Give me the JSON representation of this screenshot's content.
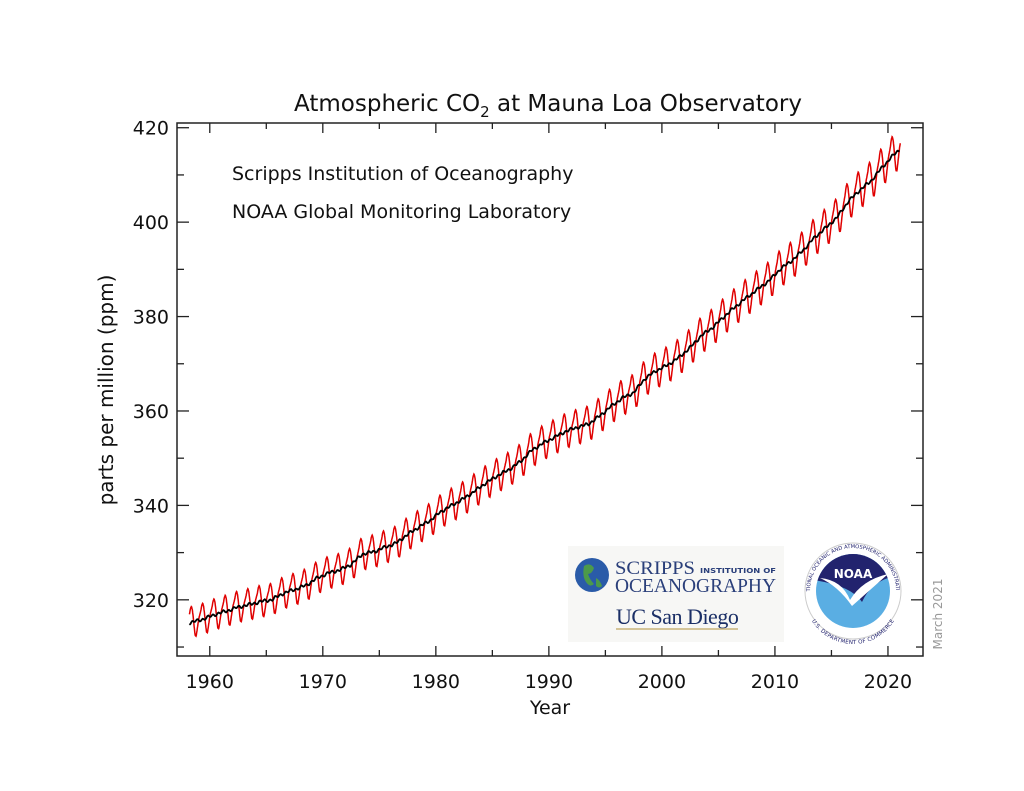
{
  "chart_data": {
    "type": "line",
    "title": "Atmospheric CO",
    "title_subscript": "2",
    "title_suffix": " at Mauna Loa Observatory",
    "xlabel": "Year",
    "ylabel": "parts per million (ppm)",
    "xlim": [
      1957.1,
      2023.1
    ],
    "ylim": [
      308.1,
      421
    ],
    "x_ticks": [
      1960,
      1970,
      1980,
      1990,
      2000,
      2010,
      2020
    ],
    "y_ticks": [
      320,
      340,
      360,
      380,
      400,
      420
    ],
    "grid": false,
    "annotations": [
      "Scripps Institution of Oceanography",
      "NOAA Global Monitoring Laboratory"
    ],
    "date_stamp": "March 2021",
    "series": [
      {
        "color": "#e00000",
        "style": "monthly",
        "x_start": 1958.2,
        "x_end": 2021.1
      },
      {
        "color": "#000000",
        "style": "trend",
        "x_start": 1958.2,
        "x_end": 2021.1
      }
    ],
    "annual_mean": {
      "years": [
        1958,
        1959,
        1960,
        1961,
        1962,
        1963,
        1964,
        1965,
        1966,
        1967,
        1968,
        1969,
        1970,
        1971,
        1972,
        1973,
        1974,
        1975,
        1976,
        1977,
        1978,
        1979,
        1980,
        1981,
        1982,
        1983,
        1984,
        1985,
        1986,
        1987,
        1988,
        1989,
        1990,
        1991,
        1992,
        1993,
        1994,
        1995,
        1996,
        1997,
        1998,
        1999,
        2000,
        2001,
        2002,
        2003,
        2004,
        2005,
        2006,
        2007,
        2008,
        2009,
        2010,
        2011,
        2012,
        2013,
        2014,
        2015,
        2016,
        2017,
        2018,
        2019,
        2020,
        2021
      ],
      "ppm": [
        315.3,
        315.98,
        316.91,
        317.64,
        318.45,
        318.99,
        319.62,
        320.04,
        321.37,
        322.18,
        323.05,
        324.62,
        325.68,
        326.32,
        327.46,
        329.68,
        330.19,
        331.13,
        332.03,
        333.84,
        335.41,
        336.84,
        338.76,
        340.12,
        341.48,
        343.15,
        344.87,
        346.35,
        347.61,
        349.31,
        351.69,
        353.2,
        354.45,
        355.7,
        356.54,
        357.21,
        358.96,
        360.97,
        362.74,
        363.88,
        366.84,
        368.54,
        369.71,
        371.32,
        373.45,
        375.98,
        377.7,
        379.98,
        382.09,
        384.02,
        385.83,
        387.64,
        390.1,
        391.85,
        394.06,
        396.74,
        398.81,
        401.01,
        404.41,
        406.76,
        408.72,
        411.66,
        414.24,
        416.4
      ]
    },
    "seasonal_cycle_ppm": [
      0.5,
      1.2,
      1.9,
      3.0,
      3.4,
      2.6,
      0.9,
      -1.2,
      -3.0,
      -3.2,
      -2.0,
      -0.7
    ]
  },
  "logos": {
    "scripps_line1": "SCRIPPS",
    "scripps_line1_small": "INSTITUTION OF",
    "scripps_line2": "OCEANOGRAPHY",
    "ucsd": "UC San Diego",
    "noaa": "NOAA",
    "noaa_ring_top": "NATIONAL OCEANIC AND ATMOSPHERIC ADMINISTRATION",
    "noaa_ring_bottom": "U.S. DEPARTMENT OF COMMERCE"
  }
}
